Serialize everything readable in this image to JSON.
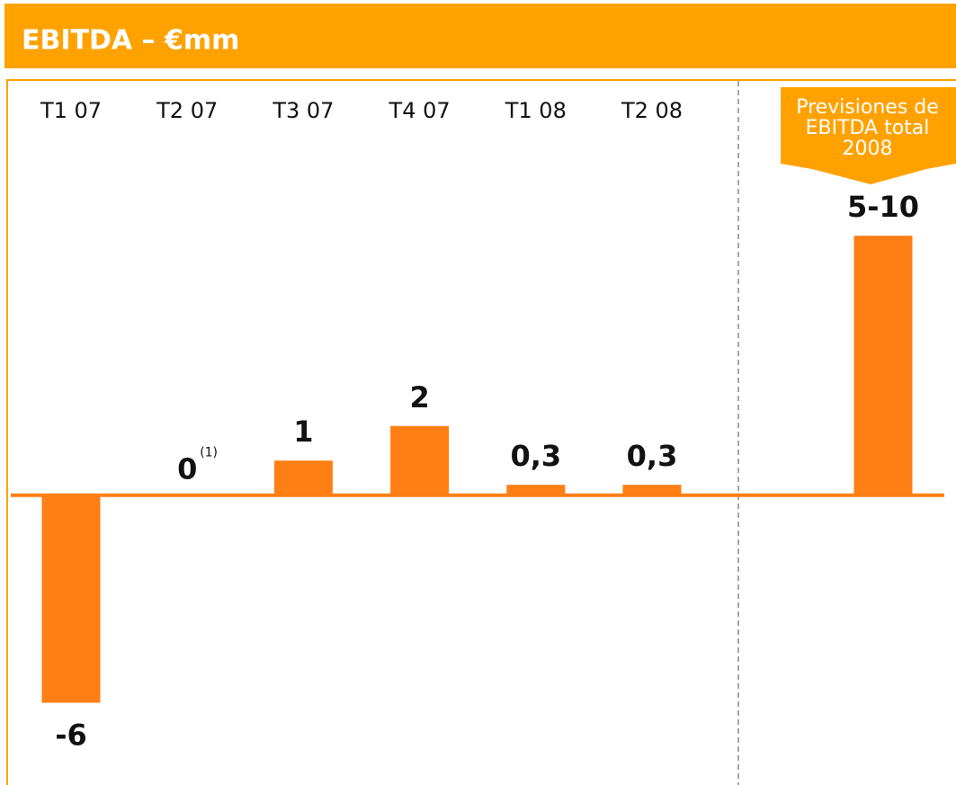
{
  "chart_data": {
    "type": "bar",
    "title": "EBITDA – €mm",
    "categories": [
      "T1 07",
      "T2 07",
      "T3 07",
      "T4 07",
      "T1 08",
      "T2 08",
      "Previsiones de EBITDA total 2008"
    ],
    "values": [
      -6,
      0,
      1,
      2,
      0.3,
      0.3,
      7.5
    ],
    "value_labels": [
      "-6",
      "0",
      "1",
      "2",
      "0,3",
      "0,3",
      "5-10"
    ],
    "annotation": "(1)",
    "color": "#ff7f14",
    "ylim": [
      -7,
      10
    ]
  }
}
